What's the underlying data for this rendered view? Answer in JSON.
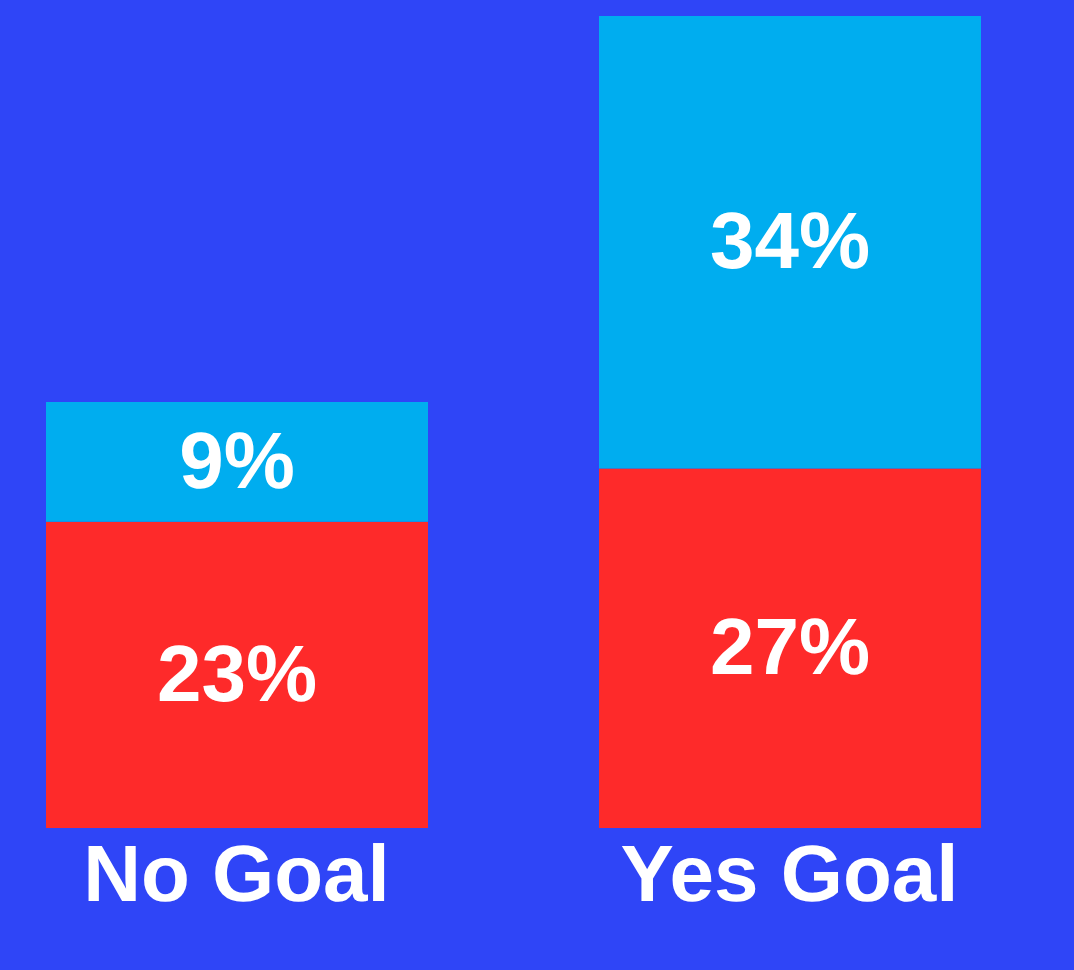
{
  "chart_data": {
    "type": "bar",
    "stacked": true,
    "categories": [
      "No Goal",
      "Yes Goal"
    ],
    "series": [
      {
        "color": "#fe2a2a",
        "values": [
          23,
          27
        ],
        "value_labels": [
          "23%",
          "27%"
        ]
      },
      {
        "color": "#00adef",
        "values": [
          9,
          34
        ],
        "value_labels": [
          "9%",
          "34%"
        ]
      }
    ],
    "grid": false,
    "legend": false
  }
}
